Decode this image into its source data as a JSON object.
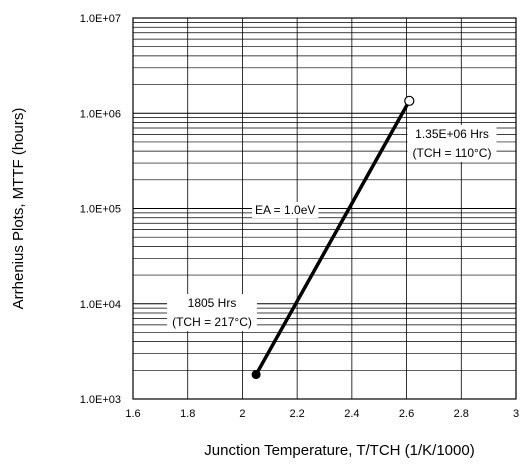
{
  "chart_data": {
    "type": "line",
    "title": "",
    "xlabel": "Junction Temperature, T/TCH (1/K/1000)",
    "ylabel": "Arrhenius Plots, MTTF (hours)",
    "xlim": [
      1.6,
      3.0
    ],
    "ylim": [
      1000,
      10000000
    ],
    "yscale": "log",
    "x_ticks": [
      "1.6",
      "1.8",
      "2",
      "2.2",
      "2.4",
      "2.6",
      "2.8",
      "3"
    ],
    "y_ticks": [
      "1.0E+03",
      "1.0E+04",
      "1.0E+05",
      "1.0E+06",
      "1.0E+07"
    ],
    "grid": true,
    "series": [
      {
        "x": [
          2.05,
          2.61
        ],
        "y": [
          1805,
          1350000
        ]
      }
    ],
    "annotations": {
      "ea": "EA = 1.0eV",
      "high_value": "1.35E+06 Hrs",
      "high_condition": "(TCH = 110°C)",
      "low_value": "1805 Hrs",
      "low_condition": "(TCH = 217°C)"
    }
  }
}
